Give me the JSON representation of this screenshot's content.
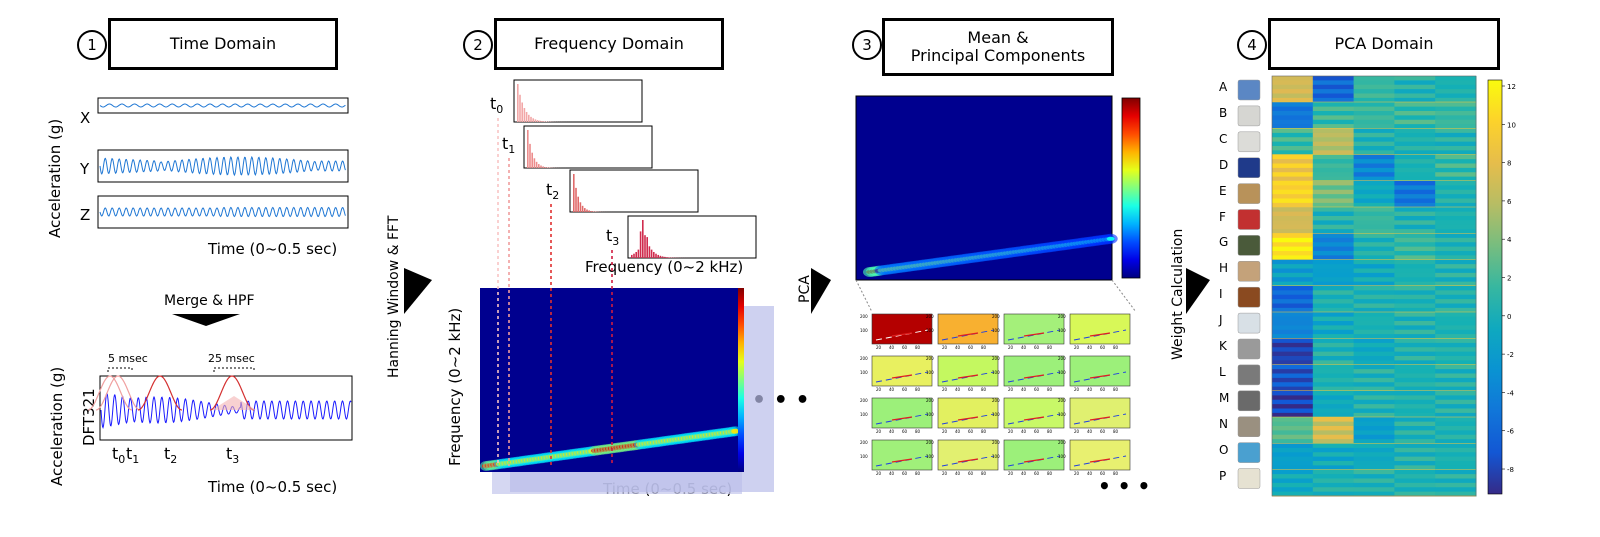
{
  "steps": [
    {
      "number": "1",
      "title": "Time Domain"
    },
    {
      "number": "2",
      "title": "Frequency Domain"
    },
    {
      "number": "3",
      "title_line1": "Mean &",
      "title_line2": "Principal Components"
    },
    {
      "number": "4",
      "title": "PCA Domain"
    }
  ],
  "time_domain": {
    "ylabel": "Acceleration (g)",
    "axes": [
      "X",
      "Y",
      "Z"
    ],
    "xlabel": "Time (0~0.5 sec)",
    "merge_label": "Merge & HPF",
    "merged_ylabel": "Acceleration (g)",
    "merged_label": "DFT321",
    "annot_5": "5 msec",
    "annot_25": "25 msec",
    "t0": "t",
    "t0s": "0",
    "t1": "t",
    "t1s": "1",
    "t2": "t",
    "t2s": "2",
    "t3": "t",
    "t3s": "3",
    "merged_xlabel": "Time (0~0.5 sec)",
    "signal_color": "#1f77d4",
    "merged_color": "#1a1aff",
    "window_color": "#d43030"
  },
  "arrows": {
    "fft": "Hanning Window & FFT",
    "pca": "PCA",
    "weight": "Weight Calculation"
  },
  "frequency_domain": {
    "time_labels": [
      {
        "t": "t",
        "s": "0"
      },
      {
        "t": "t",
        "s": "1"
      },
      {
        "t": "t",
        "s": "2"
      },
      {
        "t": "t",
        "s": "3"
      }
    ],
    "freq_xlabel": "Frequency (0~2 kHz)",
    "spec_ylabel": "Frequency (0~2 kHz)",
    "spec_xlabel": "Time (0~0.5 sec)",
    "more": "• • •",
    "colormap": "jet"
  },
  "components": {
    "more": "• • •",
    "tick_y": [
      "200",
      "100"
    ],
    "tick_x": [
      "20",
      "40",
      "60",
      "80"
    ]
  },
  "pca_domain": {
    "rows": [
      "A",
      "B",
      "C",
      "D",
      "E",
      "F",
      "G",
      "H",
      "I",
      "J",
      "K",
      "L",
      "M",
      "N",
      "O",
      "P"
    ],
    "colorbar_ticks": [
      "12",
      "10",
      "8",
      "6",
      "4",
      "2",
      "0",
      "-2",
      "-4",
      "-6",
      "-8"
    ],
    "colormap": "parula",
    "swatch_colors": [
      "#5b87c4",
      "#d6d6d2",
      "#dcdcd8",
      "#1f3a8a",
      "#b8925a",
      "#c23030",
      "#4a5a3a",
      "#c4a27a",
      "#8a4a20",
      "#d8e0e6",
      "#9a9a9a",
      "#7a7a7a",
      "#6a6a6a",
      "#9a9080",
      "#4aa0d0",
      "#e6e2d2"
    ]
  }
}
